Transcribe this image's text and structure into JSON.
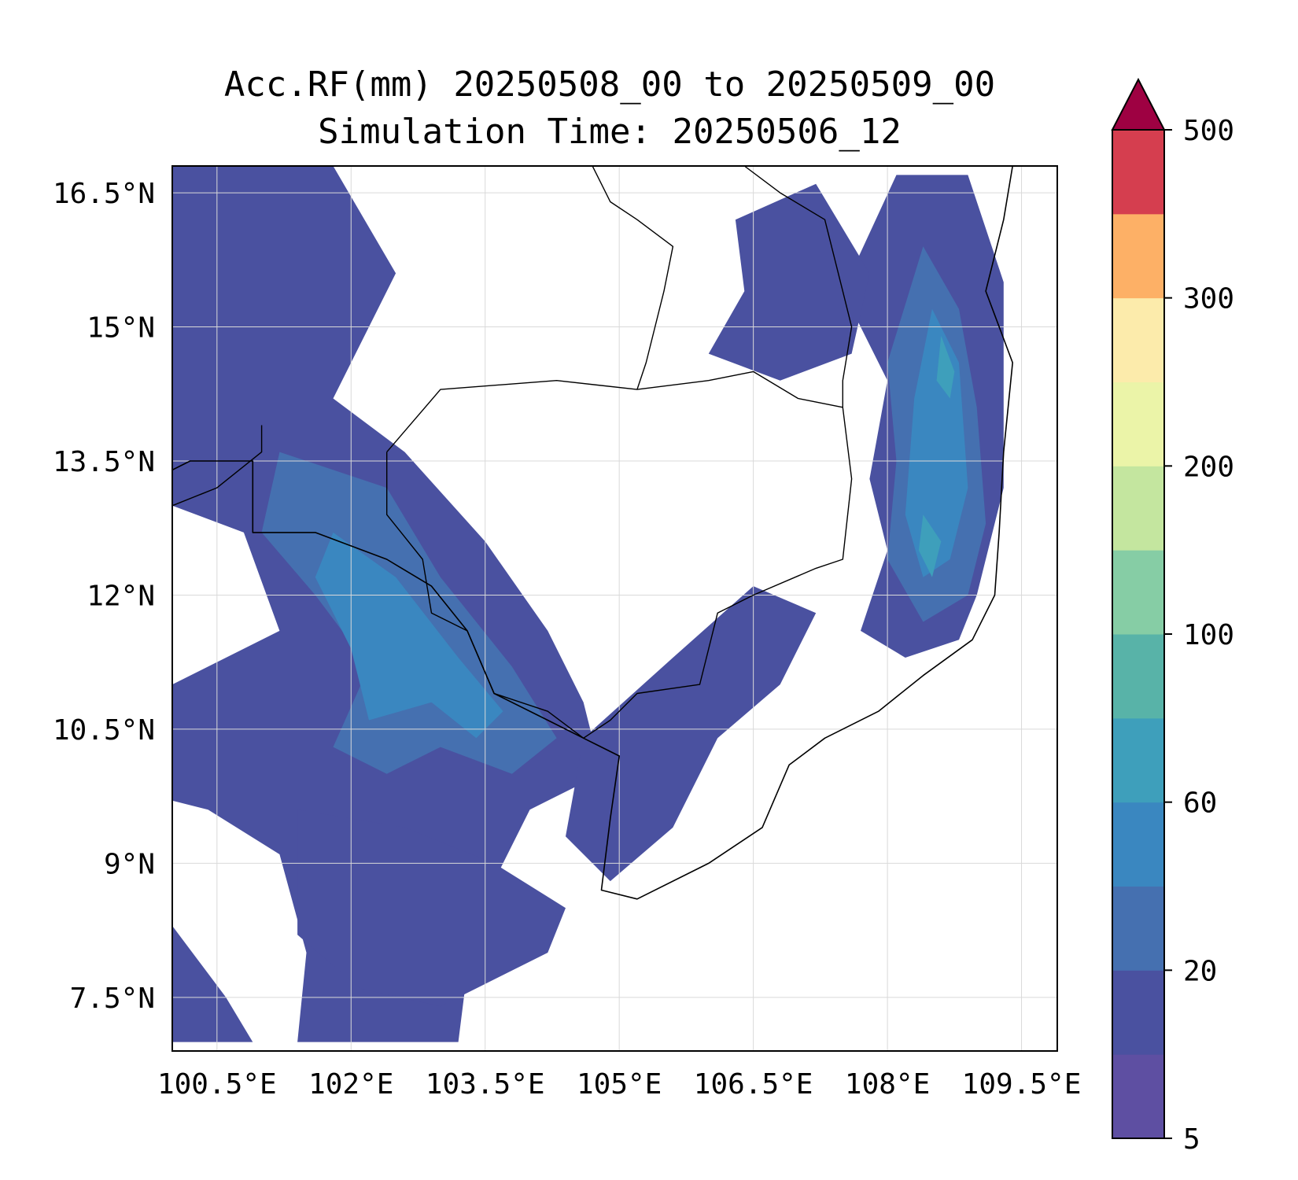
{
  "title": {
    "line1": "Acc.RF(mm) 20250508_00 to 20250509_00",
    "line2": "Simulation Time: 20250506_12"
  },
  "map": {
    "lon_range": [
      100.0,
      109.9
    ],
    "lat_range": [
      6.9,
      16.8
    ],
    "lon_ticks": [
      {
        "value": 100.5,
        "label": "100.5°E"
      },
      {
        "value": 102.0,
        "label": "102°E"
      },
      {
        "value": 103.5,
        "label": "103.5°E"
      },
      {
        "value": 105.0,
        "label": "105°E"
      },
      {
        "value": 106.5,
        "label": "106.5°E"
      },
      {
        "value": 108.0,
        "label": "108°E"
      },
      {
        "value": 109.5,
        "label": "109.5°E"
      }
    ],
    "lat_ticks": [
      {
        "value": 16.5,
        "label": "16.5°N"
      },
      {
        "value": 15.0,
        "label": "15°N"
      },
      {
        "value": 13.5,
        "label": "13.5°N"
      },
      {
        "value": 12.0,
        "label": "12°N"
      },
      {
        "value": 10.5,
        "label": "10.5°N"
      },
      {
        "value": 9.0,
        "label": "9°N"
      },
      {
        "value": 7.5,
        "label": "7.5°N"
      }
    ],
    "grid": true,
    "rain_regions": [
      {
        "name": "eastern-coast-band",
        "level": 1,
        "points": [
          [
            108.1,
            16.7
          ],
          [
            108.9,
            16.7
          ],
          [
            109.3,
            15.5
          ],
          [
            109.3,
            13.2
          ],
          [
            109.0,
            12.0
          ],
          [
            108.8,
            11.5
          ],
          [
            108.2,
            11.3
          ],
          [
            107.7,
            11.6
          ],
          [
            108.0,
            12.5
          ],
          [
            107.8,
            13.3
          ],
          [
            108.0,
            14.4
          ],
          [
            107.5,
            15.4
          ]
        ]
      },
      {
        "name": "eastern-highlands-mid",
        "level": 2,
        "points": [
          [
            108.4,
            15.9
          ],
          [
            108.8,
            15.2
          ],
          [
            109.0,
            14.1
          ],
          [
            109.1,
            12.8
          ],
          [
            108.9,
            12.0
          ],
          [
            108.4,
            11.7
          ],
          [
            108.0,
            12.4
          ],
          [
            108.1,
            13.5
          ],
          [
            108.0,
            14.6
          ]
        ]
      },
      {
        "name": "eastern-highlands-core",
        "level": 3,
        "points": [
          [
            108.5,
            15.2
          ],
          [
            108.8,
            14.6
          ],
          [
            108.9,
            13.2
          ],
          [
            108.7,
            12.4
          ],
          [
            108.4,
            12.2
          ],
          [
            108.2,
            12.9
          ],
          [
            108.3,
            14.2
          ]
        ]
      },
      {
        "name": "eastern-highlands-peak",
        "level": 4,
        "points": [
          [
            108.6,
            14.9
          ],
          [
            108.75,
            14.5
          ],
          [
            108.7,
            14.2
          ],
          [
            108.55,
            14.4
          ]
        ]
      },
      {
        "name": "eastern-highlands-peak-south",
        "level": 4,
        "points": [
          [
            108.4,
            12.9
          ],
          [
            108.6,
            12.6
          ],
          [
            108.5,
            12.2
          ],
          [
            108.35,
            12.5
          ]
        ]
      },
      {
        "name": "northeast-laos-band",
        "level": 1,
        "points": [
          [
            106.3,
            16.2
          ],
          [
            107.2,
            16.6
          ],
          [
            107.8,
            15.6
          ],
          [
            107.6,
            14.7
          ],
          [
            106.8,
            14.4
          ],
          [
            106.0,
            14.7
          ],
          [
            106.4,
            15.4
          ]
        ]
      },
      {
        "name": "west-thailand-band",
        "level": 1,
        "points": [
          [
            100.0,
            16.8
          ],
          [
            101.8,
            16.8
          ],
          [
            102.5,
            15.6
          ],
          [
            101.8,
            14.2
          ],
          [
            102.6,
            13.6
          ],
          [
            103.5,
            12.6
          ],
          [
            104.2,
            11.6
          ],
          [
            104.6,
            10.8
          ],
          [
            104.8,
            10.0
          ],
          [
            104.0,
            9.6
          ],
          [
            103.6,
            8.8
          ],
          [
            103.3,
            7.8
          ],
          [
            103.2,
            7.0
          ],
          [
            101.4,
            7.0
          ],
          [
            101.5,
            8.0
          ],
          [
            101.2,
            9.1
          ],
          [
            100.4,
            9.6
          ],
          [
            100.0,
            9.7
          ],
          [
            100.0,
            11.0
          ],
          [
            101.2,
            11.6
          ],
          [
            100.8,
            12.7
          ],
          [
            100.0,
            13.0
          ]
        ]
      },
      {
        "name": "gulf-west-band-mid",
        "level": 2,
        "points": [
          [
            101.2,
            13.6
          ],
          [
            102.4,
            13.2
          ],
          [
            103.0,
            12.2
          ],
          [
            103.8,
            11.2
          ],
          [
            104.3,
            10.4
          ],
          [
            103.8,
            10.0
          ],
          [
            103.0,
            10.3
          ],
          [
            102.4,
            10.0
          ],
          [
            101.8,
            10.3
          ],
          [
            102.2,
            11.2
          ],
          [
            101.6,
            12.0
          ],
          [
            101.0,
            12.7
          ]
        ]
      },
      {
        "name": "gulf-west-band-core",
        "level": 3,
        "points": [
          [
            101.8,
            12.7
          ],
          [
            102.5,
            12.2
          ],
          [
            103.2,
            11.3
          ],
          [
            103.7,
            10.7
          ],
          [
            103.4,
            10.4
          ],
          [
            102.9,
            10.8
          ],
          [
            102.2,
            10.6
          ],
          [
            102.0,
            11.4
          ],
          [
            101.6,
            12.2
          ]
        ]
      },
      {
        "name": "south-gulf-band",
        "level": 1,
        "points": [
          [
            101.4,
            9.6
          ],
          [
            102.6,
            9.4
          ],
          [
            103.6,
            9.0
          ],
          [
            104.4,
            8.5
          ],
          [
            104.2,
            8.0
          ],
          [
            103.0,
            7.4
          ],
          [
            102.1,
            7.6
          ],
          [
            101.4,
            8.2
          ]
        ]
      },
      {
        "name": "mekong-delta-band",
        "level": 1,
        "points": [
          [
            104.6,
            10.4
          ],
          [
            105.6,
            11.3
          ],
          [
            106.5,
            12.1
          ],
          [
            107.2,
            11.8
          ],
          [
            106.8,
            11.0
          ],
          [
            106.1,
            10.4
          ],
          [
            105.6,
            9.4
          ],
          [
            104.9,
            8.8
          ],
          [
            104.4,
            9.3
          ]
        ]
      },
      {
        "name": "southwest-corner-band",
        "level": 1,
        "points": [
          [
            100.0,
            8.3
          ],
          [
            100.6,
            7.5
          ],
          [
            100.9,
            7.0
          ],
          [
            100.0,
            7.0
          ]
        ]
      }
    ],
    "coastline": [
      [
        109.4,
        16.8
      ],
      [
        109.3,
        16.2
      ],
      [
        109.1,
        15.4
      ],
      [
        109.4,
        14.6
      ],
      [
        109.3,
        13.6
      ],
      [
        109.25,
        12.7
      ],
      [
        109.2,
        12.0
      ],
      [
        108.95,
        11.5
      ],
      [
        108.4,
        11.1
      ],
      [
        107.9,
        10.7
      ],
      [
        107.3,
        10.4
      ],
      [
        106.9,
        10.1
      ],
      [
        106.6,
        9.4
      ],
      [
        106.0,
        9.0
      ],
      [
        105.2,
        8.6
      ],
      [
        104.8,
        8.7
      ],
      [
        104.9,
        9.5
      ],
      [
        105.0,
        10.2
      ],
      [
        104.6,
        10.4
      ],
      [
        104.2,
        10.6
      ],
      [
        103.6,
        10.9
      ],
      [
        103.3,
        11.6
      ],
      [
        102.9,
        12.1
      ],
      [
        102.4,
        12.4
      ],
      [
        101.6,
        12.7
      ],
      [
        100.9,
        12.7
      ],
      [
        100.9,
        13.5
      ],
      [
        100.2,
        13.5
      ],
      [
        100.0,
        13.4
      ]
    ],
    "borders": [
      {
        "name": "cambodia-outline",
        "points": [
          [
            102.4,
            13.6
          ],
          [
            103.0,
            14.3
          ],
          [
            104.3,
            14.4
          ],
          [
            105.2,
            14.3
          ],
          [
            106.0,
            14.4
          ],
          [
            106.5,
            14.5
          ],
          [
            107.0,
            14.2
          ],
          [
            107.5,
            14.1
          ],
          [
            107.6,
            13.3
          ],
          [
            107.5,
            12.4
          ],
          [
            107.2,
            12.3
          ],
          [
            106.5,
            12.0
          ],
          [
            106.1,
            11.8
          ],
          [
            105.9,
            11.0
          ],
          [
            105.2,
            10.9
          ],
          [
            104.9,
            10.6
          ],
          [
            104.6,
            10.4
          ],
          [
            104.2,
            10.7
          ],
          [
            103.6,
            10.9
          ],
          [
            103.3,
            11.6
          ],
          [
            102.9,
            11.8
          ],
          [
            102.8,
            12.4
          ],
          [
            102.4,
            12.9
          ],
          [
            102.4,
            13.6
          ]
        ]
      },
      {
        "name": "laos-thailand-border",
        "points": [
          [
            105.2,
            14.3
          ],
          [
            105.3,
            14.6
          ],
          [
            105.5,
            15.4
          ],
          [
            105.6,
            15.9
          ],
          [
            105.2,
            16.2
          ],
          [
            104.9,
            16.4
          ],
          [
            104.7,
            16.8
          ]
        ]
      },
      {
        "name": "laos-vietnam-border",
        "points": [
          [
            106.4,
            16.8
          ],
          [
            106.8,
            16.5
          ],
          [
            107.3,
            16.2
          ],
          [
            107.5,
            15.4
          ],
          [
            107.6,
            15.0
          ],
          [
            107.5,
            14.4
          ],
          [
            107.5,
            14.1
          ]
        ]
      },
      {
        "name": "thailand-myanmar-border",
        "points": [
          [
            100.0,
            13.0
          ],
          [
            100.5,
            13.2
          ],
          [
            101.0,
            13.6
          ],
          [
            101.0,
            13.9
          ]
        ]
      }
    ]
  },
  "colorbar": {
    "boundaries": [
      5,
      10,
      20,
      40,
      60,
      80,
      100,
      150,
      200,
      250,
      300,
      400,
      500
    ],
    "tick_values": [
      5,
      20,
      60,
      100,
      200,
      300,
      500
    ],
    "tick_labels": [
      "5",
      "20",
      "60",
      "100",
      "200",
      "300",
      "500"
    ],
    "colors": [
      "#5e4fa2",
      "#4a51a0",
      "#4570b0",
      "#3a87c0",
      "#3e9fbb",
      "#58b3a8",
      "#86cda5",
      "#c4e69f",
      "#ebf4a8",
      "#fcebab",
      "#fdb066",
      "#d53e4f"
    ],
    "extend_color": "#9e0142",
    "extend": "max"
  }
}
